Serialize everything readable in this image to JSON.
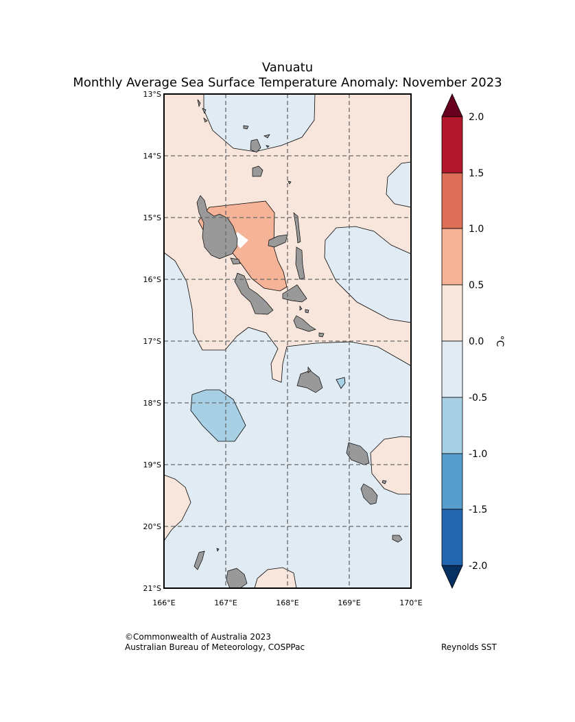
{
  "title": "Vanuatu",
  "subtitle": "Monthly Average Sea Surface Temperature Anomaly: November 2023",
  "map": {
    "lat_labels": [
      "13°S",
      "14°S",
      "15°S",
      "16°S",
      "17°S",
      "18°S",
      "19°S",
      "20°S",
      "21°S"
    ],
    "lon_labels": [
      "166°E",
      "167°E",
      "168°E",
      "169°E",
      "170°E"
    ],
    "lat_range": [
      -21,
      -13
    ],
    "lon_range": [
      166,
      170
    ],
    "gridlines": true,
    "land_color": "#999999"
  },
  "colorbar": {
    "unit": "°C",
    "tick_labels": [
      "2.0",
      "1.5",
      "1.0",
      "0.5",
      "0.0",
      "-0.5",
      "-1.0",
      "-1.5",
      "-2.0"
    ],
    "bins": [
      {
        "range": "1.5 to 2.0",
        "color": "#b2182b"
      },
      {
        "range": "1.0 to 1.5",
        "color": "#dd6e58"
      },
      {
        "range": "0.5 to 1.0",
        "color": "#f5b497"
      },
      {
        "range": "0.0 to 0.5",
        "color": "#f8e6dd"
      },
      {
        "range": "-0.5 to 0.0",
        "color": "#e0ebf3"
      },
      {
        "range": "-1.0 to -0.5",
        "color": "#a8d0e4"
      },
      {
        "range": "-1.5 to -1.0",
        "color": "#579ecc"
      },
      {
        "range": "-2.0 to -1.5",
        "color": "#2467b1"
      }
    ],
    "over_color": "#67001f",
    "under_color": "#053061"
  },
  "footer": {
    "copyright": "©Commonwealth of Australia 2023",
    "agency": "Australian Bureau of Meteorology, COSPPac",
    "source": "Reynolds SST"
  }
}
